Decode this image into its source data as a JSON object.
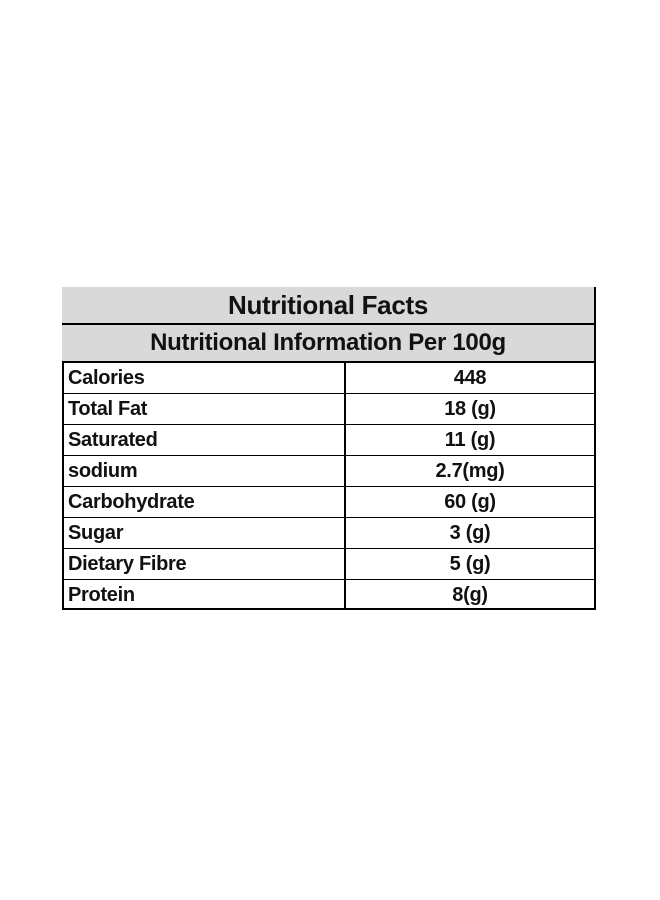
{
  "table": {
    "title": "Nutritional Facts",
    "subtitle": "Nutritional Information Per 100g",
    "rows": [
      {
        "label": "Calories",
        "value": "448"
      },
      {
        "label": "Total Fat",
        "value": "18 (g)"
      },
      {
        "label": "Saturated",
        "value": "11 (g)"
      },
      {
        "label": "sodium",
        "value": "2.7(mg)"
      },
      {
        "label": "Carbohydrate",
        "value": "60 (g)"
      },
      {
        "label": "Sugar",
        "value": "3 (g)"
      },
      {
        "label": "Dietary Fibre",
        "value": "5 (g)"
      },
      {
        "label": "Protein",
        "value": "8(g)"
      }
    ]
  },
  "colors": {
    "header_background": "#d9d9d9",
    "border": "#000000",
    "text": "#111111"
  }
}
